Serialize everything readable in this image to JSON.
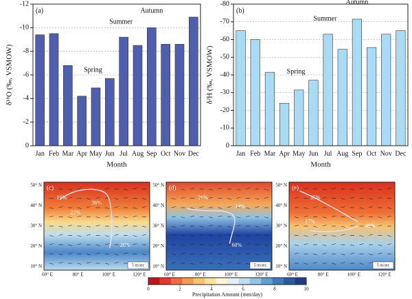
{
  "chart_data": [
    {
      "type": "bar",
      "panel_label": "(a)",
      "y_label": "δ¹⁸O (‰, VSMOW)",
      "x_label": "Month",
      "annotations": [
        "Spring",
        "Summer",
        "Autumn"
      ],
      "categories": [
        "Jan",
        "Feb",
        "Mar",
        "Apr",
        "May",
        "Jun",
        "Jul",
        "Aug",
        "Sep",
        "Oct",
        "Nov",
        "Dec"
      ],
      "values": [
        -9.4,
        -9.5,
        -6.8,
        -4.2,
        -4.9,
        -5.7,
        -9.2,
        -8.5,
        -10.0,
        -8.6,
        -8.6,
        -10.9
      ],
      "color": "#4f5fad",
      "ylim": [
        0,
        -12
      ],
      "yticks": [
        0,
        -2,
        -4,
        -6,
        -8,
        -10,
        -12
      ],
      "grid": true
    },
    {
      "type": "bar",
      "panel_label": "(b)",
      "y_label": "δ²H (‰, VSMOW)",
      "x_label": "Month",
      "annotations": [
        "Spring",
        "Summer",
        "Autumn"
      ],
      "categories": [
        "Jan",
        "Feb",
        "Mar",
        "Apr",
        "May",
        "Jun",
        "Jul",
        "Aug",
        "Sep",
        "Oct",
        "Nov",
        "Dec"
      ],
      "values": [
        -65,
        -60,
        -41.5,
        -24,
        -31.5,
        -37,
        -63,
        -54.5,
        -71.5,
        -55.5,
        -63,
        -65
      ],
      "color": "#a9dcf4",
      "ylim": [
        0,
        -80
      ],
      "yticks": [
        0,
        -10,
        -20,
        -30,
        -40,
        -50,
        -60,
        -70,
        -80
      ],
      "grid": true
    }
  ],
  "maps": {
    "yticks": [
      "50° N",
      "40° N",
      "30° N",
      "20° N",
      "10° N"
    ],
    "xticks": [
      "60° E",
      "80° E",
      "100° E",
      "120° E"
    ],
    "scale_label": "5 m/sec",
    "panels": [
      {
        "label": "(c)",
        "percents": [
          "16%",
          "36%",
          "22%",
          "26%"
        ]
      },
      {
        "label": "(d)",
        "percents": [
          "26%",
          "14%",
          "60%"
        ]
      },
      {
        "label": "(e)",
        "percents": [
          "35%",
          "17%",
          "49%"
        ]
      }
    ],
    "colorbar": {
      "lim": [
        0,
        10
      ],
      "ticks": [
        0,
        2,
        4,
        6,
        8,
        10
      ],
      "label": "Precipitation Amount (mm/day)"
    }
  }
}
